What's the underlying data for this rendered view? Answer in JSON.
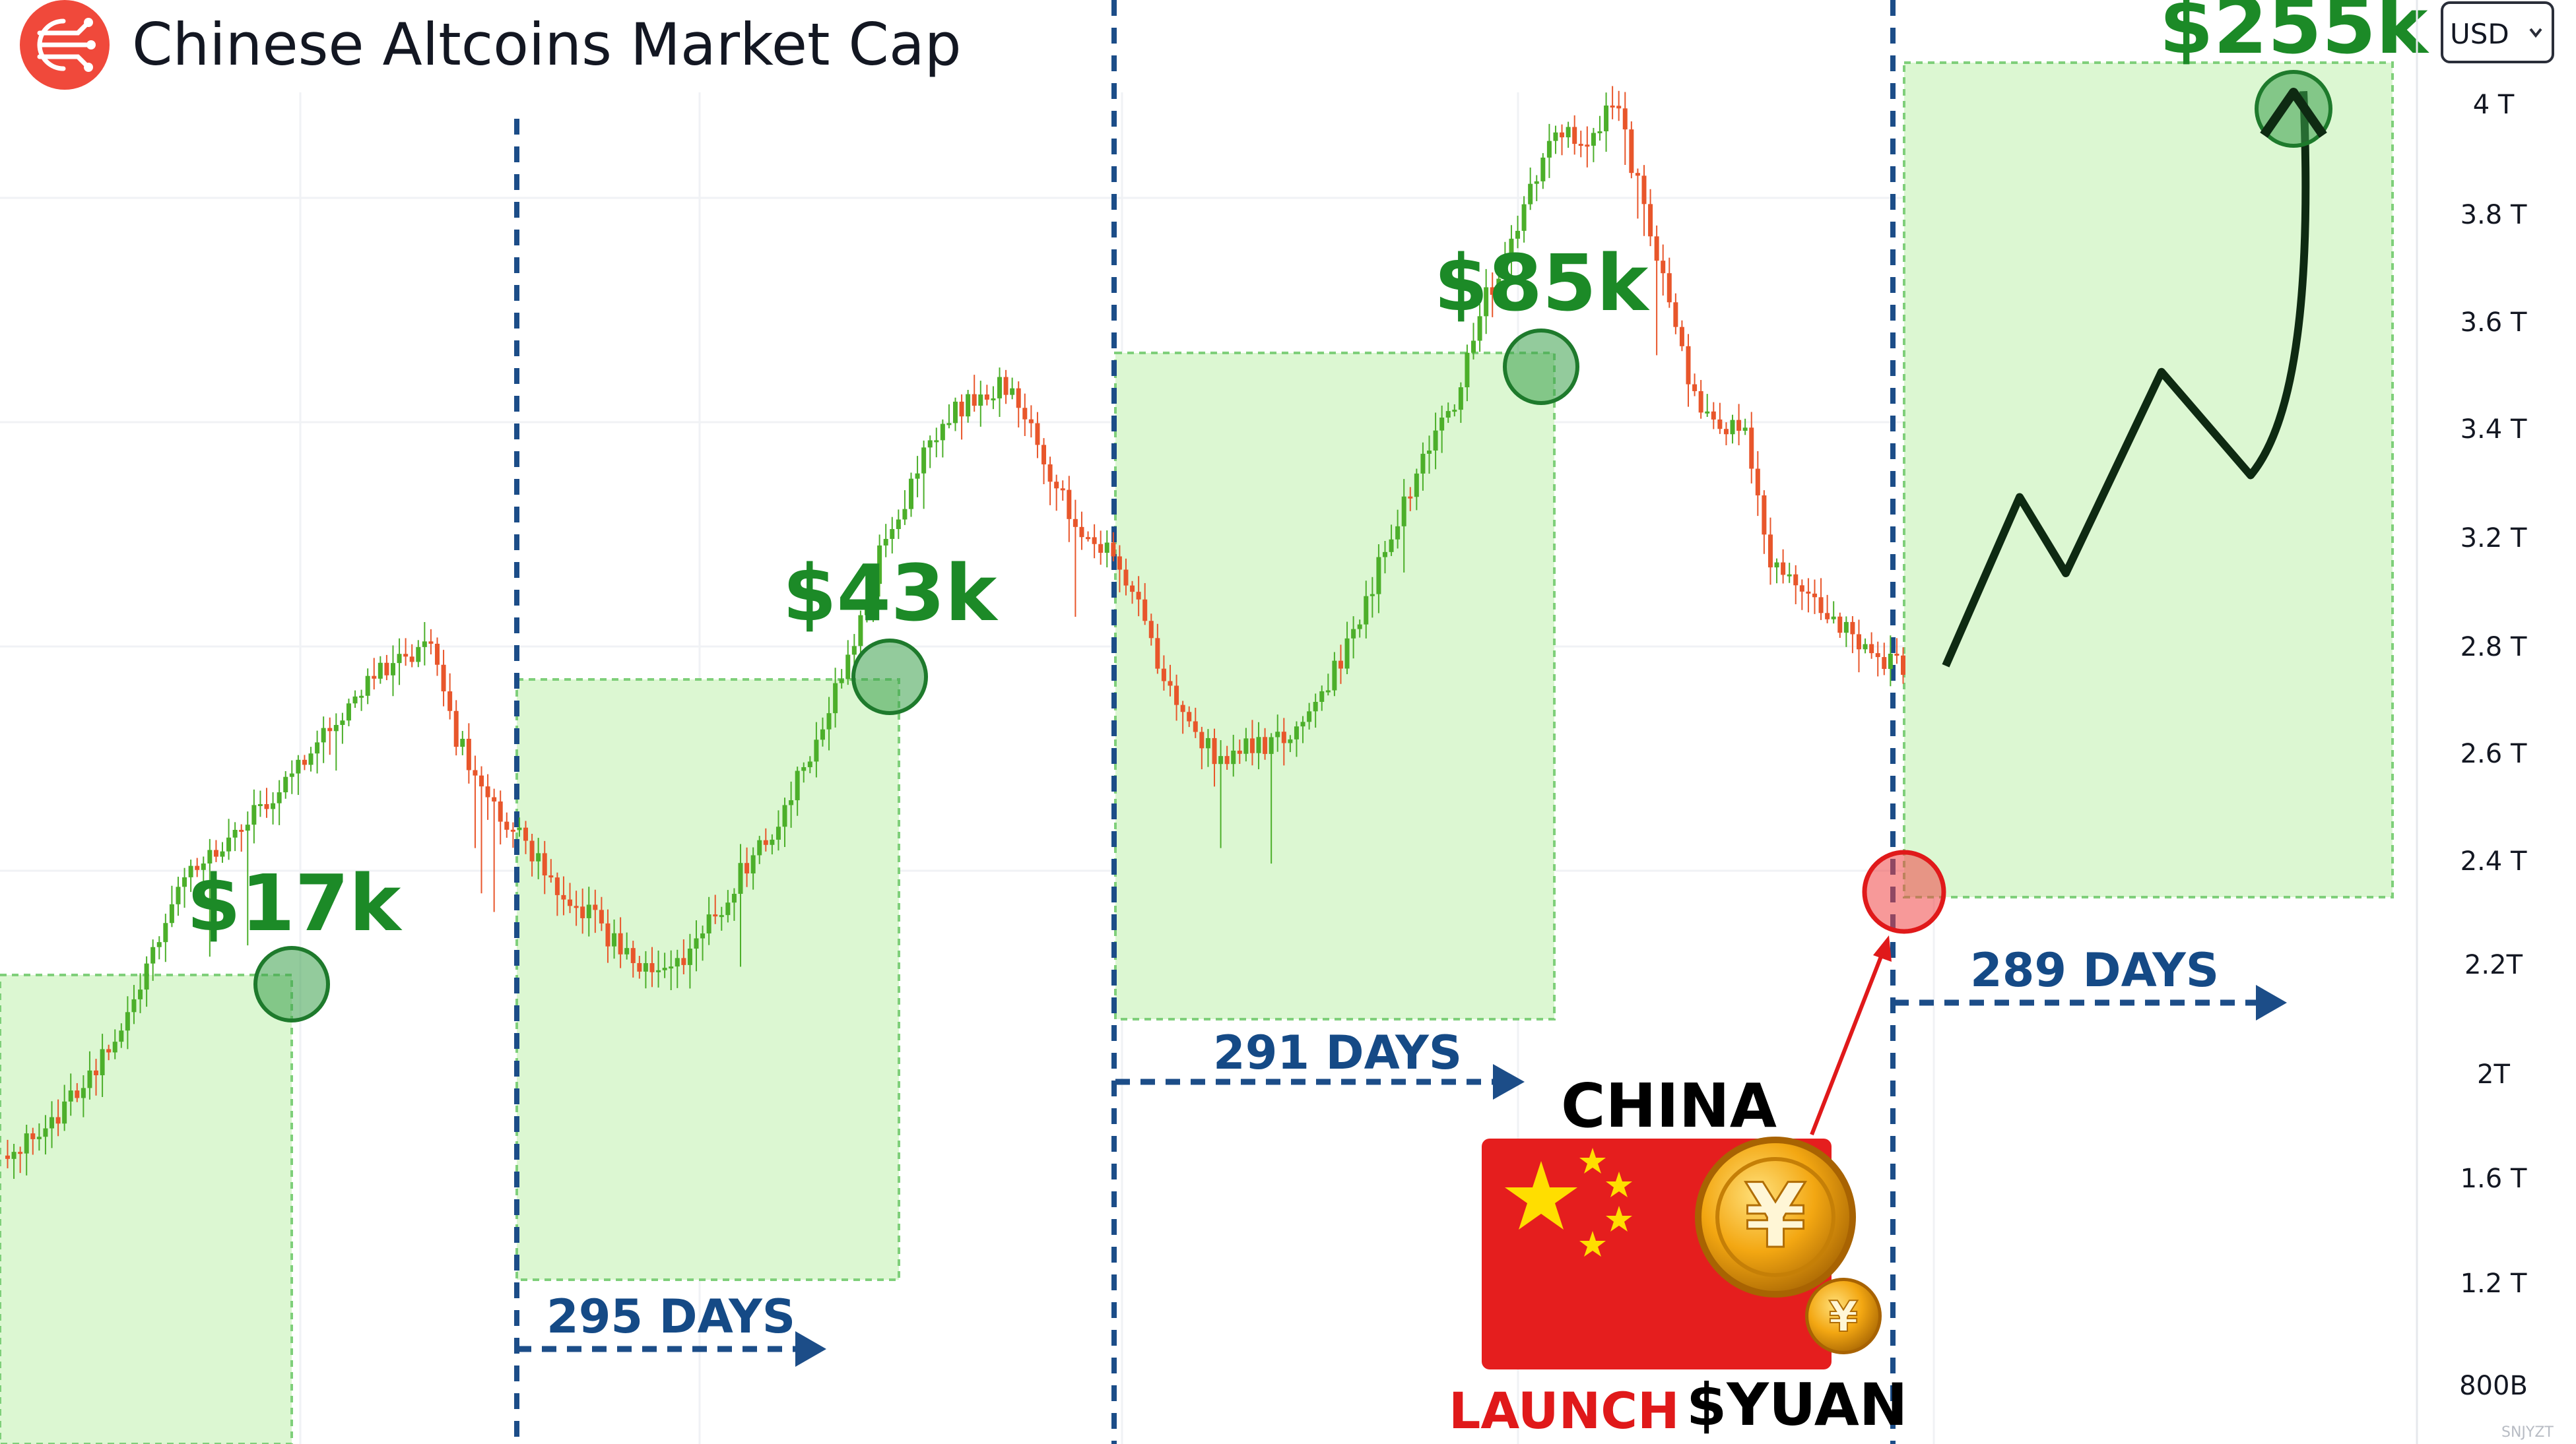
{
  "header": {
    "title": "Chinese Altcoins Market Cap",
    "logo_icon": "circuit-logo-icon",
    "currency": "USD",
    "currency_icon": "chevron-down-icon"
  },
  "colors": {
    "bull": "#4caf2a",
    "bear": "#e8562b",
    "zone_fill": "#dcf7d2",
    "zone_border": "#7fcf7a",
    "divider": "#1c4d88",
    "peak_circle": "#3ba14a",
    "price_text": "#1c8a27",
    "launch_red": "#e0191a",
    "flag_red": "#e51e1e",
    "coin_gold": "#f3a712"
  },
  "chart_data": {
    "type": "candlestick",
    "title": "Chinese Altcoins Market Cap",
    "currency": "USD",
    "y_ticks": [
      "4 T",
      "3.8 T",
      "3.6 T",
      "3.4 T",
      "3.2 T",
      "2.8 T",
      "2.6 T",
      "2.4 T",
      "2.2T",
      "2T",
      "1.6 T",
      "1.2 T",
      "800B"
    ],
    "peaks": [
      {
        "label": "$17k"
      },
      {
        "label": "$43k"
      },
      {
        "label": "$85k"
      },
      {
        "label": "$255k",
        "projected": true
      }
    ],
    "cycles": [
      {
        "label": "295 DAYS",
        "days": 295
      },
      {
        "label": "291 DAYS",
        "days": 291
      },
      {
        "label": "289 DAYS",
        "days": 289
      }
    ],
    "market_cap_path": [
      2.65,
      2.85,
      3.05,
      3.35,
      3.7,
      4.2,
      4.8,
      5.3,
      5.5,
      5.7,
      5.9,
      6.2,
      6.5,
      6.8,
      7.1,
      7.2,
      7.35,
      6.5,
      6.1,
      5.7,
      5.4,
      5.1,
      4.9,
      4.6,
      4.35,
      4.4,
      4.55,
      4.9,
      5.3,
      5.6,
      6.1,
      6.6,
      7.3,
      8.1,
      8.6,
      9.2,
      9.5,
      9.6,
      9.75,
      9.3,
      8.7,
      8.3,
      8.15,
      7.65,
      7.0,
      6.6,
      6.3,
      6.4,
      6.45,
      6.6,
      6.9,
      7.4,
      8.0,
      8.6,
      9.2,
      9.6,
      10.5,
      10.9,
      11.6,
      12.1,
      11.9,
      12.35,
      11.5,
      10.6,
      9.6,
      9.4,
      9.3,
      8.1,
      7.8,
      7.7,
      7.45,
      7.2,
      7.15
    ],
    "projection_path": [
      7.15,
      8.7,
      8.0,
      9.85,
      8.9,
      12.55
    ]
  },
  "annotations": {
    "china_label": "CHINA",
    "launch_label": "LAUNCH",
    "yuan_label": "$YUAN",
    "flag_icon": "china-flag-icon",
    "coin_icon": "yuan-coin-icon",
    "watermark": "SNJYZT"
  }
}
